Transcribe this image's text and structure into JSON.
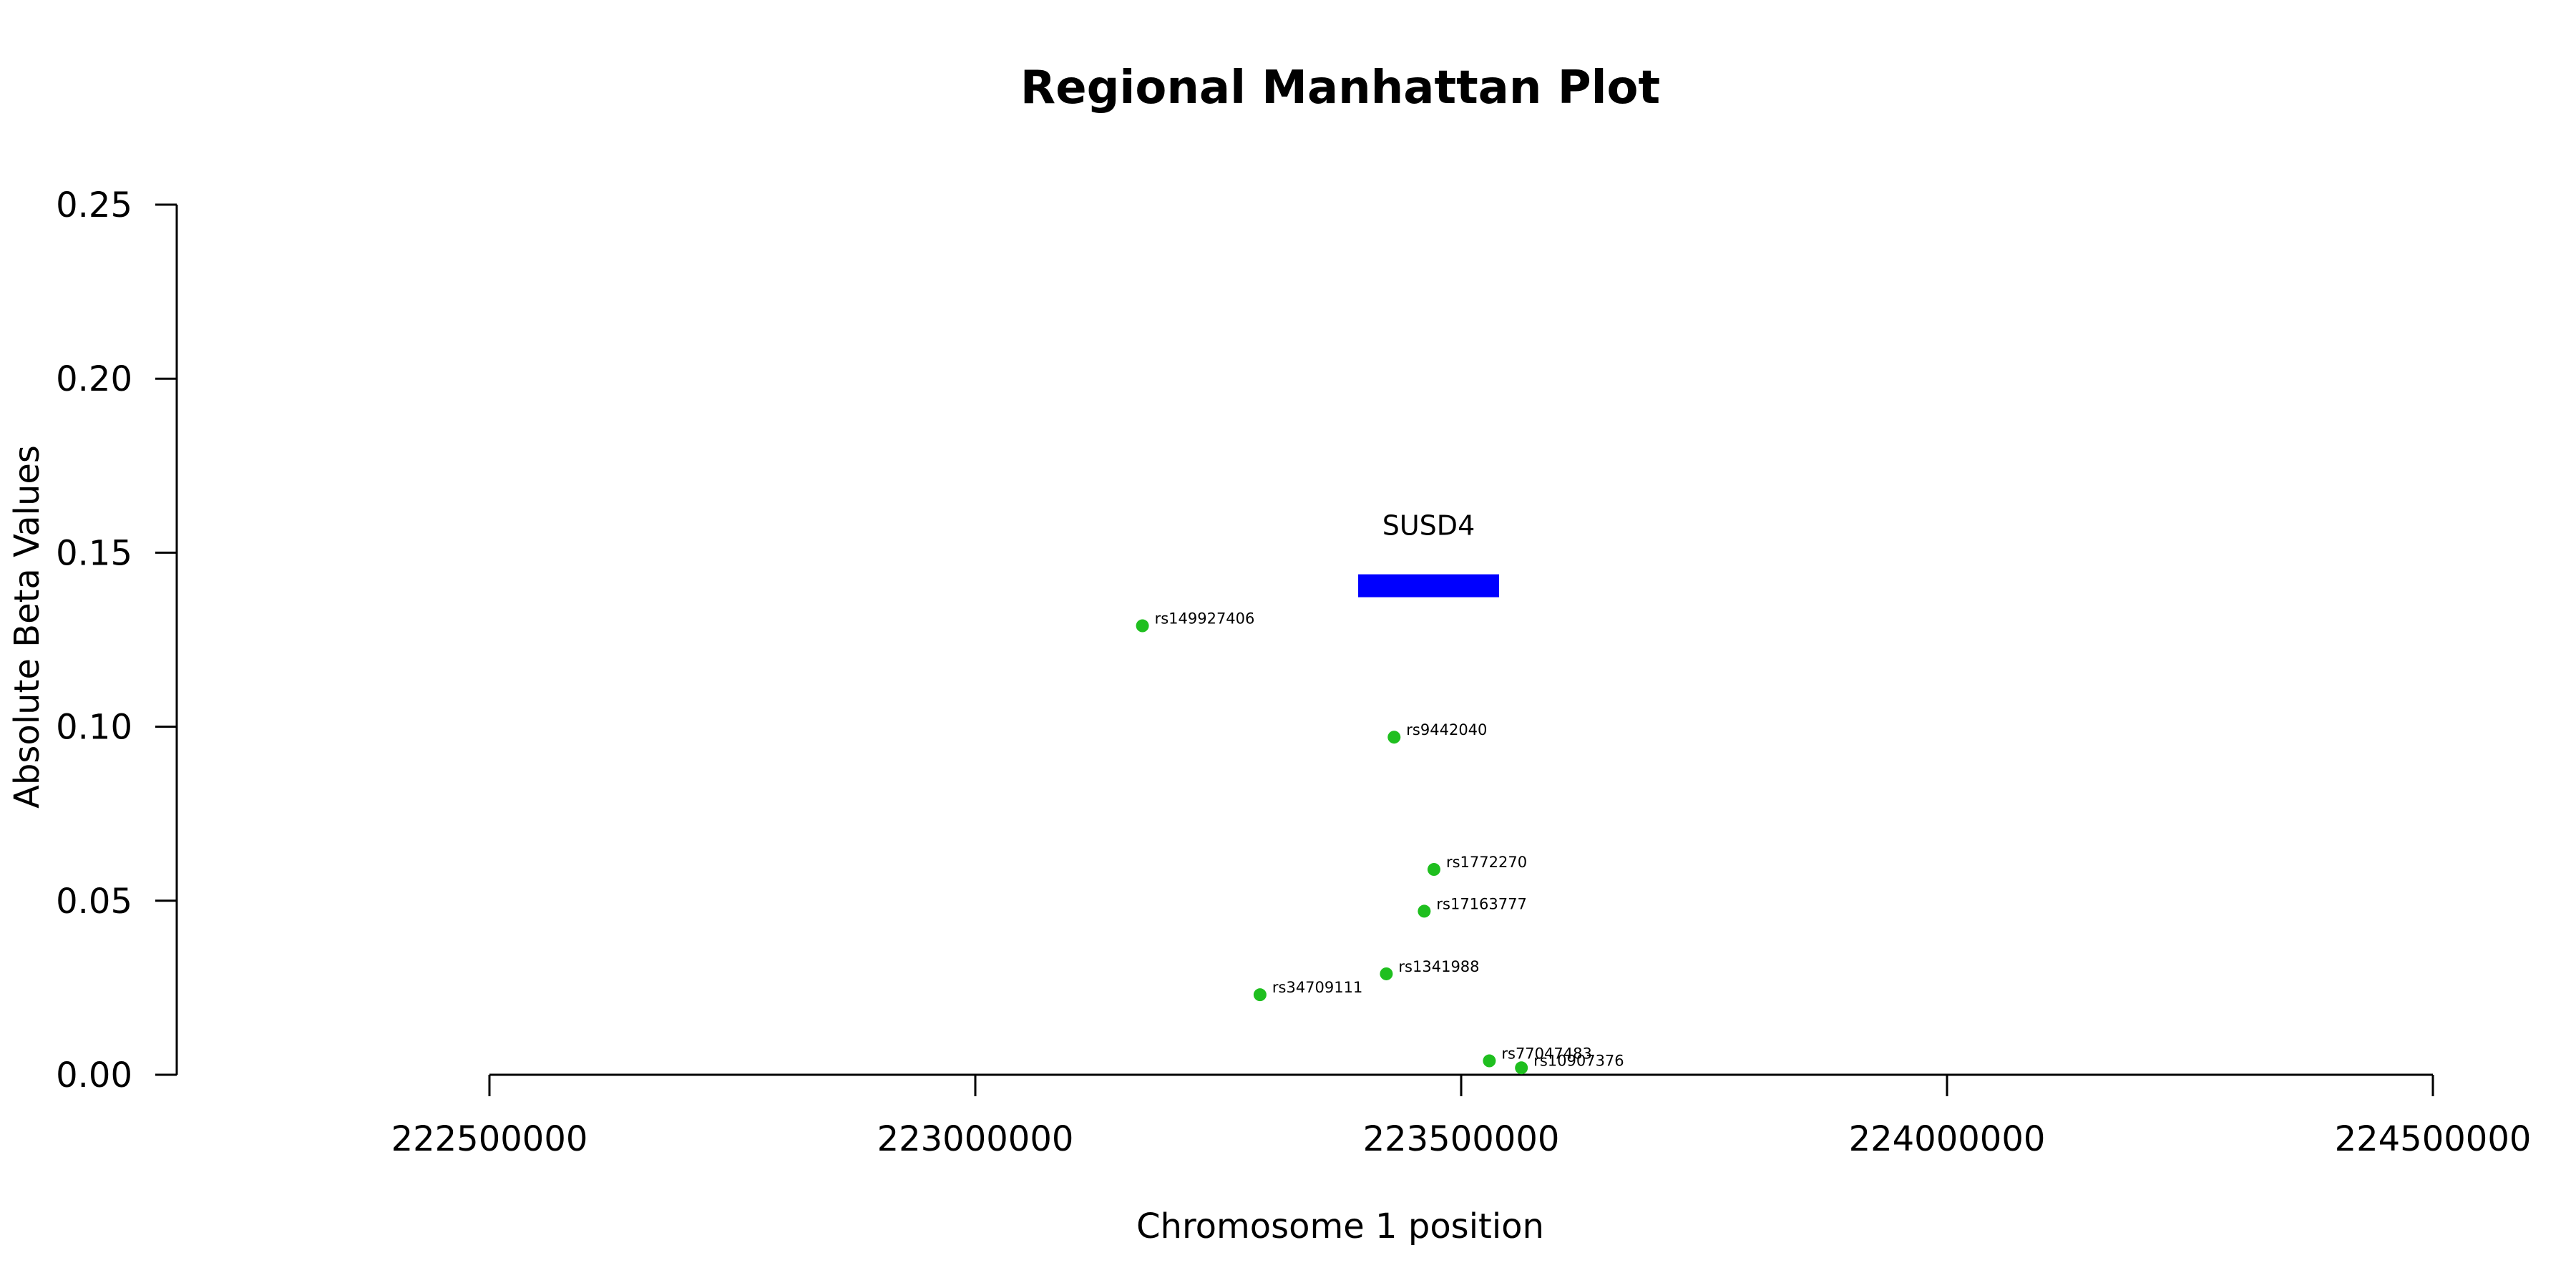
{
  "chart_data": {
    "type": "scatter",
    "title": "Regional Manhattan Plot",
    "xlabel": "Chromosome 1 position",
    "ylabel": "Absolute Beta Values",
    "xlim": [
      222500000,
      224500000
    ],
    "ylim": [
      0,
      0.25
    ],
    "x_ticks": [
      222500000,
      223000000,
      223500000,
      224000000,
      224500000
    ],
    "y_ticks": [
      0.0,
      0.05,
      0.1,
      0.15,
      0.2,
      0.25
    ],
    "y_tick_labels": [
      "0.00",
      "0.05",
      "0.10",
      "0.15",
      "0.20",
      "0.25"
    ],
    "grid": false,
    "point_color": "#1fbf1f",
    "points": [
      {
        "label": "rs149927406",
        "x": 223172000,
        "y": 0.129
      },
      {
        "label": "rs9442040",
        "x": 223431000,
        "y": 0.097
      },
      {
        "label": "rs1772270",
        "x": 223472000,
        "y": 0.059
      },
      {
        "label": "rs17163777",
        "x": 223462000,
        "y": 0.047
      },
      {
        "label": "rs1341988",
        "x": 223423000,
        "y": 0.029
      },
      {
        "label": "rs34709111",
        "x": 223293000,
        "y": 0.023
      },
      {
        "label": "rs77047483",
        "x": 223529000,
        "y": 0.004
      },
      {
        "label": "rs10907376",
        "x": 223562000,
        "y": 0.002
      }
    ],
    "gene": {
      "name": "SUSD4",
      "start": 223394000,
      "end": 223539000,
      "y": 0.1405,
      "color": "#0000ff"
    }
  }
}
